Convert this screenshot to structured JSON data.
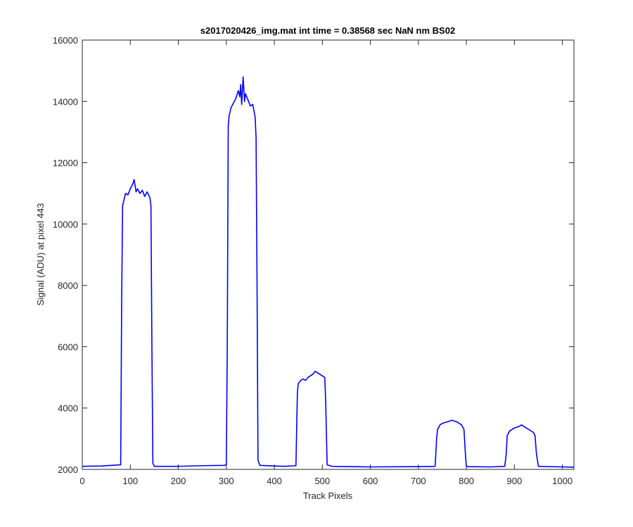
{
  "chart_data": {
    "type": "line",
    "title": "s2017020426_img.mat int time = 0.38568 sec  NaN nm BS02",
    "xlabel": "Track Pixels",
    "ylabel": "Signal (ADU) at pixel 443",
    "xlim": [
      0,
      1024
    ],
    "ylim": [
      2000,
      16000
    ],
    "xticks": [
      0,
      100,
      200,
      300,
      400,
      500,
      600,
      700,
      800,
      900,
      1000
    ],
    "yticks": [
      2000,
      4000,
      6000,
      8000,
      10000,
      12000,
      14000,
      16000
    ],
    "grid": false,
    "line_color": "#0000ff",
    "series": [
      {
        "x": [
          0,
          40,
          80,
          82,
          84,
          90,
          95,
          100,
          105,
          108,
          112,
          115,
          120,
          125,
          130,
          135,
          138,
          141,
          143,
          145,
          147,
          150,
          200,
          250,
          295,
          300,
          302,
          304,
          306,
          310,
          315,
          320,
          325,
          328,
          330,
          332,
          335,
          338,
          340,
          345,
          350,
          355,
          360,
          362,
          364,
          366,
          370,
          420,
          445,
          448,
          450,
          455,
          460,
          465,
          470,
          475,
          480,
          485,
          490,
          495,
          500,
          505,
          507,
          510,
          520,
          600,
          700,
          735,
          738,
          740,
          745,
          750,
          760,
          770,
          780,
          790,
          795,
          798,
          800,
          805,
          850,
          880,
          883,
          885,
          890,
          900,
          910,
          915,
          920,
          930,
          940,
          943,
          946,
          950,
          1000,
          1024
        ],
        "y": [
          2100,
          2110,
          2150,
          7500,
          10600,
          11000,
          10950,
          11150,
          11300,
          11450,
          11050,
          11150,
          11000,
          11100,
          10900,
          11050,
          10950,
          10850,
          10600,
          6000,
          2200,
          2100,
          2100,
          2120,
          2130,
          2150,
          6000,
          13200,
          13550,
          13800,
          13950,
          14100,
          14350,
          14150,
          14550,
          13900,
          14800,
          14000,
          14250,
          14050,
          13850,
          13900,
          13500,
          12800,
          8000,
          2300,
          2130,
          2100,
          2120,
          4500,
          4800,
          4900,
          4950,
          4900,
          5000,
          5050,
          5100,
          5200,
          5150,
          5100,
          5050,
          5000,
          4200,
          2150,
          2100,
          2080,
          2090,
          2100,
          3000,
          3300,
          3450,
          3500,
          3550,
          3600,
          3550,
          3450,
          3300,
          2500,
          2100,
          2090,
          2080,
          2100,
          2500,
          3100,
          3250,
          3350,
          3400,
          3450,
          3400,
          3300,
          3200,
          3100,
          2500,
          2100,
          2080,
          2070
        ]
      }
    ]
  }
}
